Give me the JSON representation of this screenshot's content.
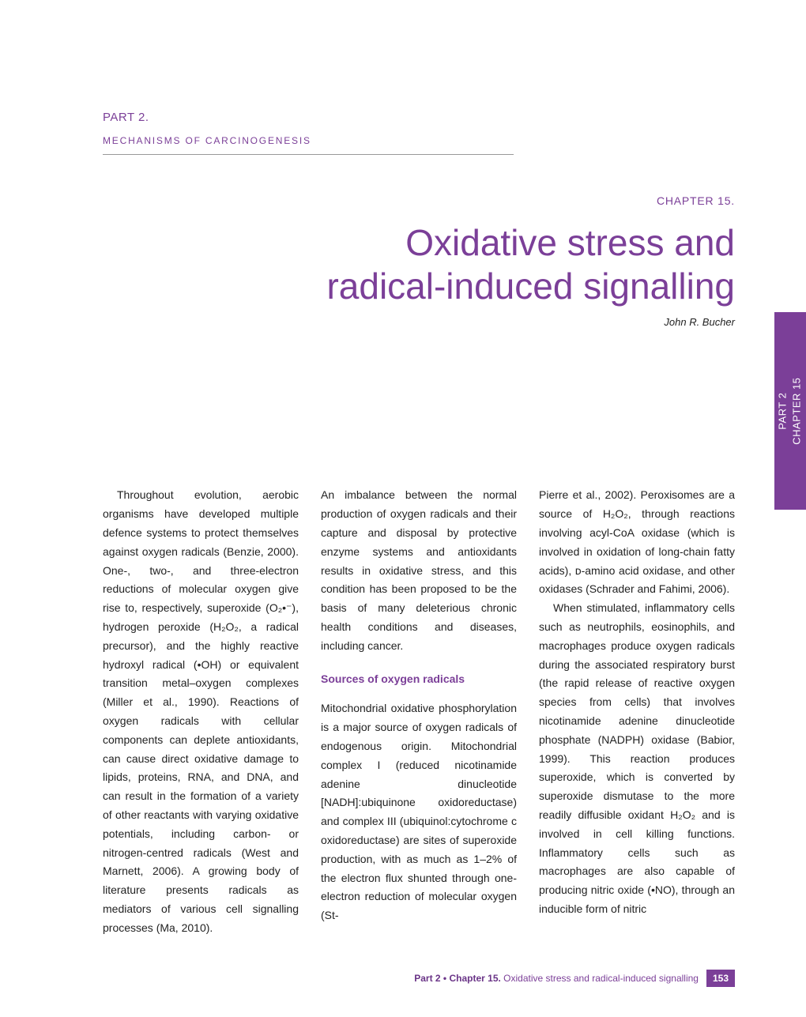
{
  "header": {
    "part": "PART 2.",
    "mechanisms": "MECHANISMS OF CARCINOGENESIS",
    "chapter": "CHAPTER 15.",
    "title_line1": "Oxidative stress and",
    "title_line2": "radical-induced signalling",
    "author": "John R. Bucher"
  },
  "side_tab": {
    "line1": "PART 2",
    "line2": "CHAPTER 15"
  },
  "body": {
    "col1_p1": "Throughout evolution, aerobic organisms have developed multiple defence systems to protect themselves against oxygen radicals (Benzie, 2000). One-, two-, and three-electron reductions of molecular oxygen give rise to, respectively, superoxide (O₂•⁻), hydrogen peroxide (H₂O₂, a radical precursor), and the highly reactive hydroxyl radical (•OH) or equivalent transition metal–oxygen complexes (Miller et al., 1990). Reactions of oxygen radicals with cellular components can deplete antioxidants, can cause direct oxidative damage to lipids, proteins, RNA, and DNA, and can result in the formation of a variety of other reactants with varying oxidative potentials, including carbon- or nitrogen-centred radicals (West and Marnett, 2006). A growing body of literature presents radicals as mediators of various cell signalling processes (Ma, 2010).",
    "col2_p1": "An imbalance between the normal production of oxygen radicals and their capture and disposal by protective enzyme systems and antioxidants results in oxidative stress, and this condition has been proposed to be the basis of many deleterious chronic health conditions and diseases, including cancer.",
    "section_head": "Sources of oxygen radicals",
    "col2_p2": "Mitochondrial oxidative phosphorylation is a major source of oxygen radicals of endogenous origin. Mitochondrial complex I (reduced nicotinamide adenine dinucleotide [NADH]:ubiquinone oxidoreductase) and complex III (ubiquinol:cytochrome c oxidoreductase) are sites of superoxide production, with as much as 1–2% of the electron flux shunted through one-electron reduction of molecular oxygen (St-",
    "col3_p1": "Pierre et al., 2002). Peroxisomes are a source of H₂O₂, through reactions involving acyl-CoA oxidase (which is involved in oxidation of long-chain fatty acids), ᴅ-amino acid oxidase, and other oxidases (Schrader and Fahimi, 2006).",
    "col3_p2": "When stimulated, inflammatory cells such as neutrophils, eosinophils, and macrophages produce oxygen radicals during the associated respiratory burst (the rapid release of reactive oxygen species from cells) that involves nicotinamide adenine dinucleotide phosphate (NADPH) oxidase (Babior, 1999). This reaction produces superoxide, which is converted by superoxide dismutase to the more readily diffusible oxidant H₂O₂ and is involved in cell killing functions. Inflammatory cells such as macrophages are also capable of producing nitric oxide (•NO), through an inducible form of nitric"
  },
  "footer": {
    "part": "Part 2 • Chapter 15.",
    "title": "Oxidative stress and radical-induced signalling",
    "page": "153"
  },
  "colors": {
    "accent": "#7b3f98",
    "text": "#222222",
    "background": "#ffffff"
  }
}
